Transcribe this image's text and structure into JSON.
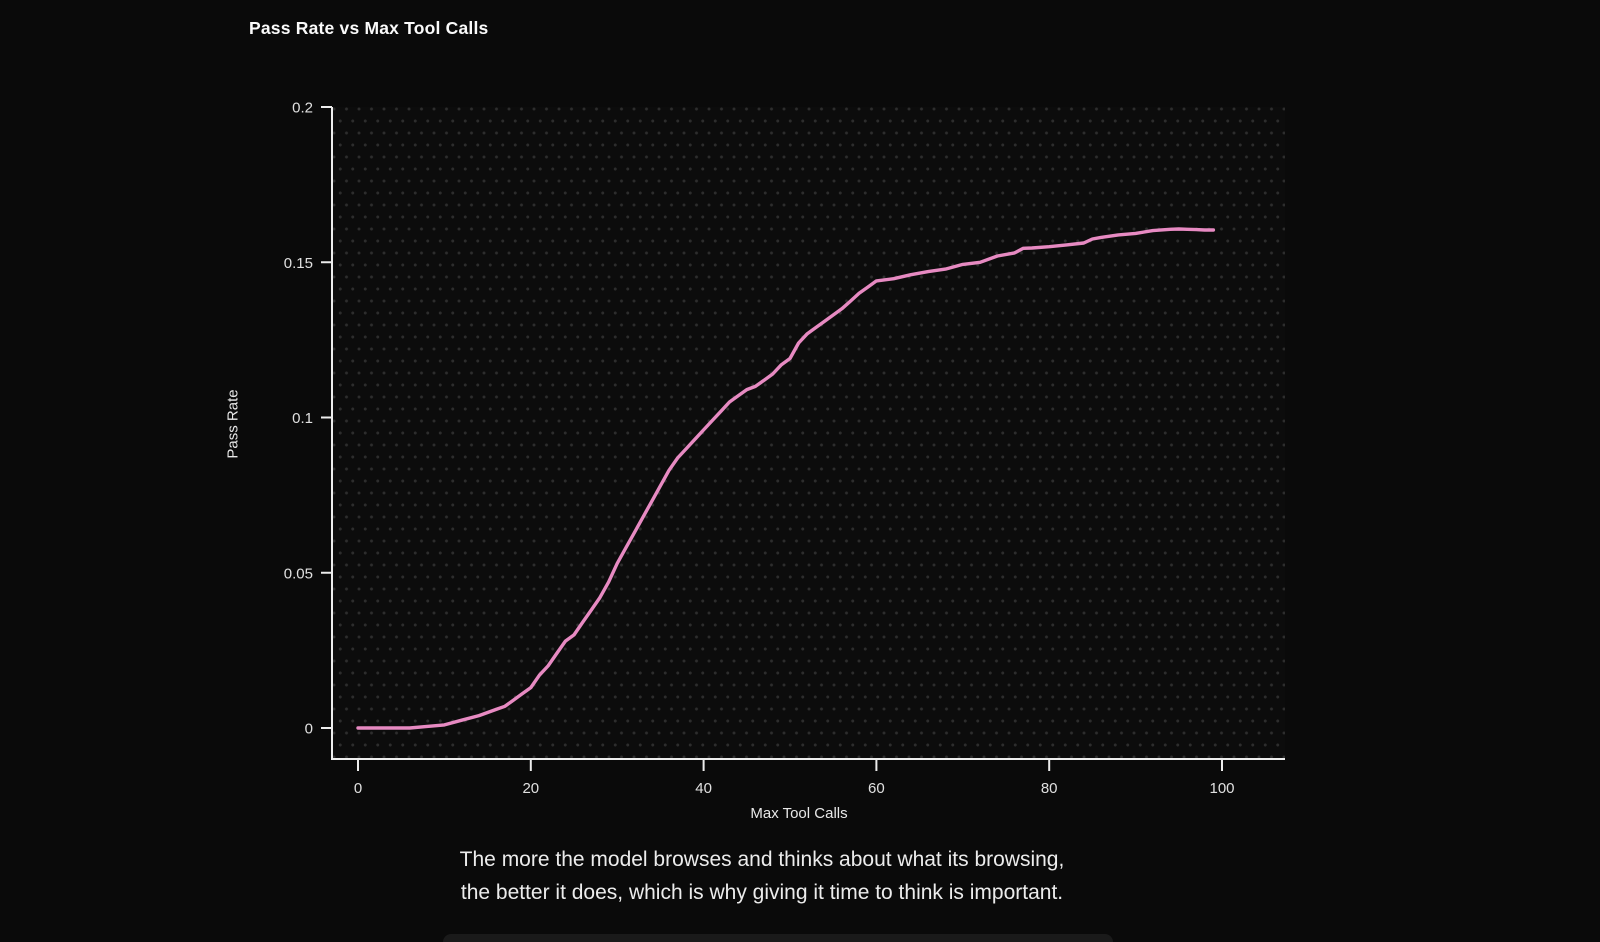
{
  "page": {
    "background": "#0a0a0a",
    "accent_pink": "#e78ac2",
    "axis_color": "#ededed",
    "tick_label_color": "#e0e0e0",
    "dot_grid_color": "#2d2d2d"
  },
  "title": "Pass Rate vs Max Tool Calls",
  "caption": {
    "line1": "The more the model browses and thinks about what its browsing,",
    "line2": "the better it does, which is why giving it time to think is important."
  },
  "chart_data": {
    "type": "line",
    "title": "Pass Rate vs Max Tool Calls",
    "xlabel": "Max Tool Calls",
    "ylabel": "Pass Rate",
    "x_ticks": [
      0,
      20,
      40,
      60,
      80,
      100
    ],
    "x_tick_labels": [
      "0",
      "20",
      "40",
      "60",
      "80",
      "100"
    ],
    "y_ticks": [
      0,
      0.05,
      0.1,
      0.15,
      0.2
    ],
    "y_tick_labels": [
      "0",
      "0.05",
      "0.1",
      "0.15",
      "0.2"
    ],
    "xlim": [
      -3,
      107.3
    ],
    "ylim": [
      -0.01,
      0.2
    ],
    "grid": "dotted-dark-background",
    "legend": "none",
    "series": [
      {
        "name": "pass_rate",
        "color": "#e78ac2",
        "points": [
          [
            0,
            0.0
          ],
          [
            2,
            0.0
          ],
          [
            4,
            0.0
          ],
          [
            6,
            0.0
          ],
          [
            8,
            0.0005
          ],
          [
            10,
            0.001
          ],
          [
            12,
            0.0025
          ],
          [
            14,
            0.004
          ],
          [
            16,
            0.006
          ],
          [
            17,
            0.007
          ],
          [
            18,
            0.009
          ],
          [
            19,
            0.011
          ],
          [
            20,
            0.013
          ],
          [
            21,
            0.017
          ],
          [
            22,
            0.02
          ],
          [
            23,
            0.024
          ],
          [
            24,
            0.028
          ],
          [
            25,
            0.03
          ],
          [
            26,
            0.034
          ],
          [
            27,
            0.038
          ],
          [
            28,
            0.042
          ],
          [
            29,
            0.047
          ],
          [
            30,
            0.053
          ],
          [
            31,
            0.058
          ],
          [
            32,
            0.063
          ],
          [
            33,
            0.068
          ],
          [
            34,
            0.073
          ],
          [
            35,
            0.078
          ],
          [
            36,
            0.083
          ],
          [
            37,
            0.087
          ],
          [
            38,
            0.09
          ],
          [
            39,
            0.093
          ],
          [
            40,
            0.096
          ],
          [
            41,
            0.099
          ],
          [
            42,
            0.102
          ],
          [
            43,
            0.105
          ],
          [
            44,
            0.107
          ],
          [
            45,
            0.109
          ],
          [
            46,
            0.11
          ],
          [
            47,
            0.112
          ],
          [
            48,
            0.114
          ],
          [
            49,
            0.117
          ],
          [
            50,
            0.119
          ],
          [
            51,
            0.124
          ],
          [
            52,
            0.127
          ],
          [
            53,
            0.129
          ],
          [
            54,
            0.131
          ],
          [
            55,
            0.133
          ],
          [
            56,
            0.135
          ],
          [
            57,
            0.1375
          ],
          [
            58,
            0.14
          ],
          [
            59,
            0.142
          ],
          [
            60,
            0.144
          ],
          [
            62,
            0.1447
          ],
          [
            64,
            0.146
          ],
          [
            66,
            0.147
          ],
          [
            68,
            0.1478
          ],
          [
            70,
            0.1493
          ],
          [
            72,
            0.15
          ],
          [
            74,
            0.152
          ],
          [
            76,
            0.153
          ],
          [
            77,
            0.1545
          ],
          [
            78,
            0.1546
          ],
          [
            80,
            0.155
          ],
          [
            82,
            0.1556
          ],
          [
            84,
            0.1562
          ],
          [
            85,
            0.1575
          ],
          [
            86,
            0.158
          ],
          [
            88,
            0.1588
          ],
          [
            90,
            0.1593
          ],
          [
            92,
            0.1602
          ],
          [
            94,
            0.1606
          ],
          [
            95,
            0.1607
          ],
          [
            96,
            0.1606
          ],
          [
            97,
            0.1605
          ],
          [
            98,
            0.1604
          ],
          [
            99,
            0.1604
          ]
        ]
      }
    ]
  }
}
